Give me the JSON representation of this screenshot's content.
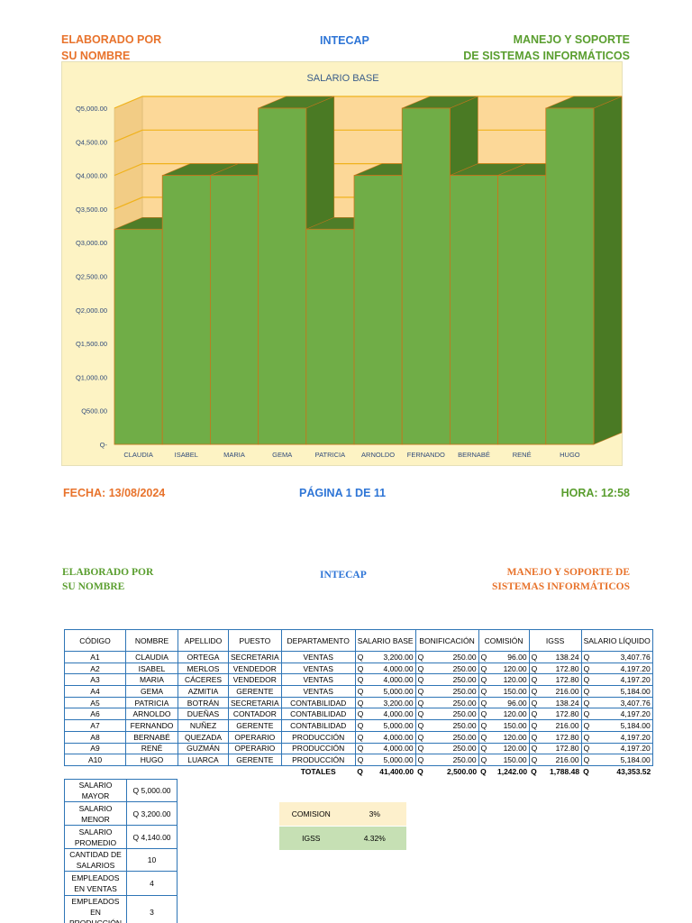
{
  "header1": {
    "left_line1": "ELABORADO POR",
    "left_line2": "SU NOMBRE",
    "center": "INTECAP",
    "right_line1": "MANEJO  Y SOPORTE",
    "right_line2": "DE SISTEMAS INFORMÁTICOS"
  },
  "chart_data": {
    "type": "bar",
    "title": "SALARIO BASE",
    "categories": [
      "CLAUDIA",
      "ISABEL",
      "MARIA",
      "GEMA",
      "PATRICIA",
      "ARNOLDO",
      "FERNANDO",
      "BERNABÉ",
      "RENÉ",
      "HUGO"
    ],
    "values": [
      3200,
      4000,
      4000,
      5000,
      3200,
      4000,
      5000,
      4000,
      4000,
      5000
    ],
    "ylim": [
      0,
      5000
    ],
    "yticks": [
      0,
      500,
      1000,
      1500,
      2000,
      2500,
      3000,
      3500,
      4000,
      4500,
      5000
    ],
    "ytick_labels": [
      "Q-",
      "Q500.00",
      "Q1,000.00",
      "Q1,500.00",
      "Q2,000.00",
      "Q2,500.00",
      "Q3,000.00",
      "Q3,500.00",
      "Q4,000.00",
      "Q4,500.00",
      "Q5,000.00"
    ],
    "bar_color": "#70ad47",
    "bar_side_color": "#4a7a24",
    "bar_top_color": "#4e7d28",
    "background": "#fdf3c4",
    "back_wall_color": "#fcd898",
    "grid": true
  },
  "footer": {
    "fecha": "FECHA: 13/08/2024",
    "pagina": "PÁGINA 1 DE 11",
    "hora": "HORA: 12:58"
  },
  "header2": {
    "left_line1": "ELABORADO POR",
    "left_line2": "SU NOMBRE",
    "center": "INTECAP",
    "right_line1": "MANEJO Y SOPORTE DE",
    "right_line2": "SISTEMAS INFORMÁTICOS"
  },
  "table": {
    "headers": [
      "CÓDIGO",
      "NOMBRE",
      "APELLIDO",
      "PUESTO",
      "DEPARTAMENTO",
      "SALARIO BASE",
      "BONIFICACIÓN",
      "COMISIÓN",
      "IGSS",
      "SALARIO LÍQUIDO"
    ],
    "currency": "Q",
    "rows": [
      [
        "A1",
        "CLAUDIA",
        "ORTEGA",
        "SECRETARIA",
        "VENTAS",
        "3,200.00",
        "250.00",
        "96.00",
        "138.24",
        "3,407.76"
      ],
      [
        "A2",
        "ISABEL",
        "MERLOS",
        "VENDEDOR",
        "VENTAS",
        "4,000.00",
        "250.00",
        "120.00",
        "172.80",
        "4,197.20"
      ],
      [
        "A3",
        "MARIA",
        "CÁCERES",
        "VENDEDOR",
        "VENTAS",
        "4,000.00",
        "250.00",
        "120.00",
        "172.80",
        "4,197.20"
      ],
      [
        "A4",
        "GEMA",
        "AZMITIA",
        "GERENTE",
        "VENTAS",
        "5,000.00",
        "250.00",
        "150.00",
        "216.00",
        "5,184.00"
      ],
      [
        "A5",
        "PATRICIA",
        "BOTRÁN",
        "SECRETARIA",
        "CONTABILIDAD",
        "3,200.00",
        "250.00",
        "96.00",
        "138.24",
        "3,407.76"
      ],
      [
        "A6",
        "ARNOLDO",
        "DUEÑAS",
        "CONTADOR",
        "CONTABILIDAD",
        "4,000.00",
        "250.00",
        "120.00",
        "172.80",
        "4,197.20"
      ],
      [
        "A7",
        "FERNANDO",
        "NUÑEZ",
        "GERENTE",
        "CONTABILIDAD",
        "5,000.00",
        "250.00",
        "150.00",
        "216.00",
        "5,184.00"
      ],
      [
        "A8",
        "BERNABÉ",
        "QUEZADA",
        "OPERARIO",
        "PRODUCCIÓN",
        "4,000.00",
        "250.00",
        "120.00",
        "172.80",
        "4,197.20"
      ],
      [
        "A9",
        "RENÉ",
        "GUZMÁN",
        "OPERARIO",
        "PRODUCCIÓN",
        "4,000.00",
        "250.00",
        "120.00",
        "172.80",
        "4,197.20"
      ],
      [
        "A10",
        "HUGO",
        "LUARCA",
        "GERENTE",
        "PRODUCCIÓN",
        "5,000.00",
        "250.00",
        "150.00",
        "216.00",
        "5,184.00"
      ]
    ],
    "totals_label": "TOTALES",
    "totals": [
      "41,400.00",
      "2,500.00",
      "1,242.00",
      "1,788.48",
      "43,353.52"
    ]
  },
  "stats": [
    {
      "label": "SALARIO MAYOR",
      "value": "Q  5,000.00"
    },
    {
      "label": "SALARIO MENOR",
      "value": "Q  3,200.00"
    },
    {
      "label": "SALARIO PROMEDIO",
      "value": "Q  4,140.00"
    },
    {
      "label": "CANTIDAD DE SALARIOS",
      "value": "10"
    },
    {
      "label": "EMPLEADOS EN VENTAS",
      "value": "4"
    },
    {
      "label": "EMPLEADOS EN PRODUCCIÓN",
      "value": "3"
    }
  ],
  "rates": {
    "comision_label": "COMISION",
    "comision_value": "3%",
    "comision_bg": "#fdf0cc",
    "igss_label": "IGSS",
    "igss_value": "4.32%",
    "igss_bg": "#c6e0b4"
  }
}
